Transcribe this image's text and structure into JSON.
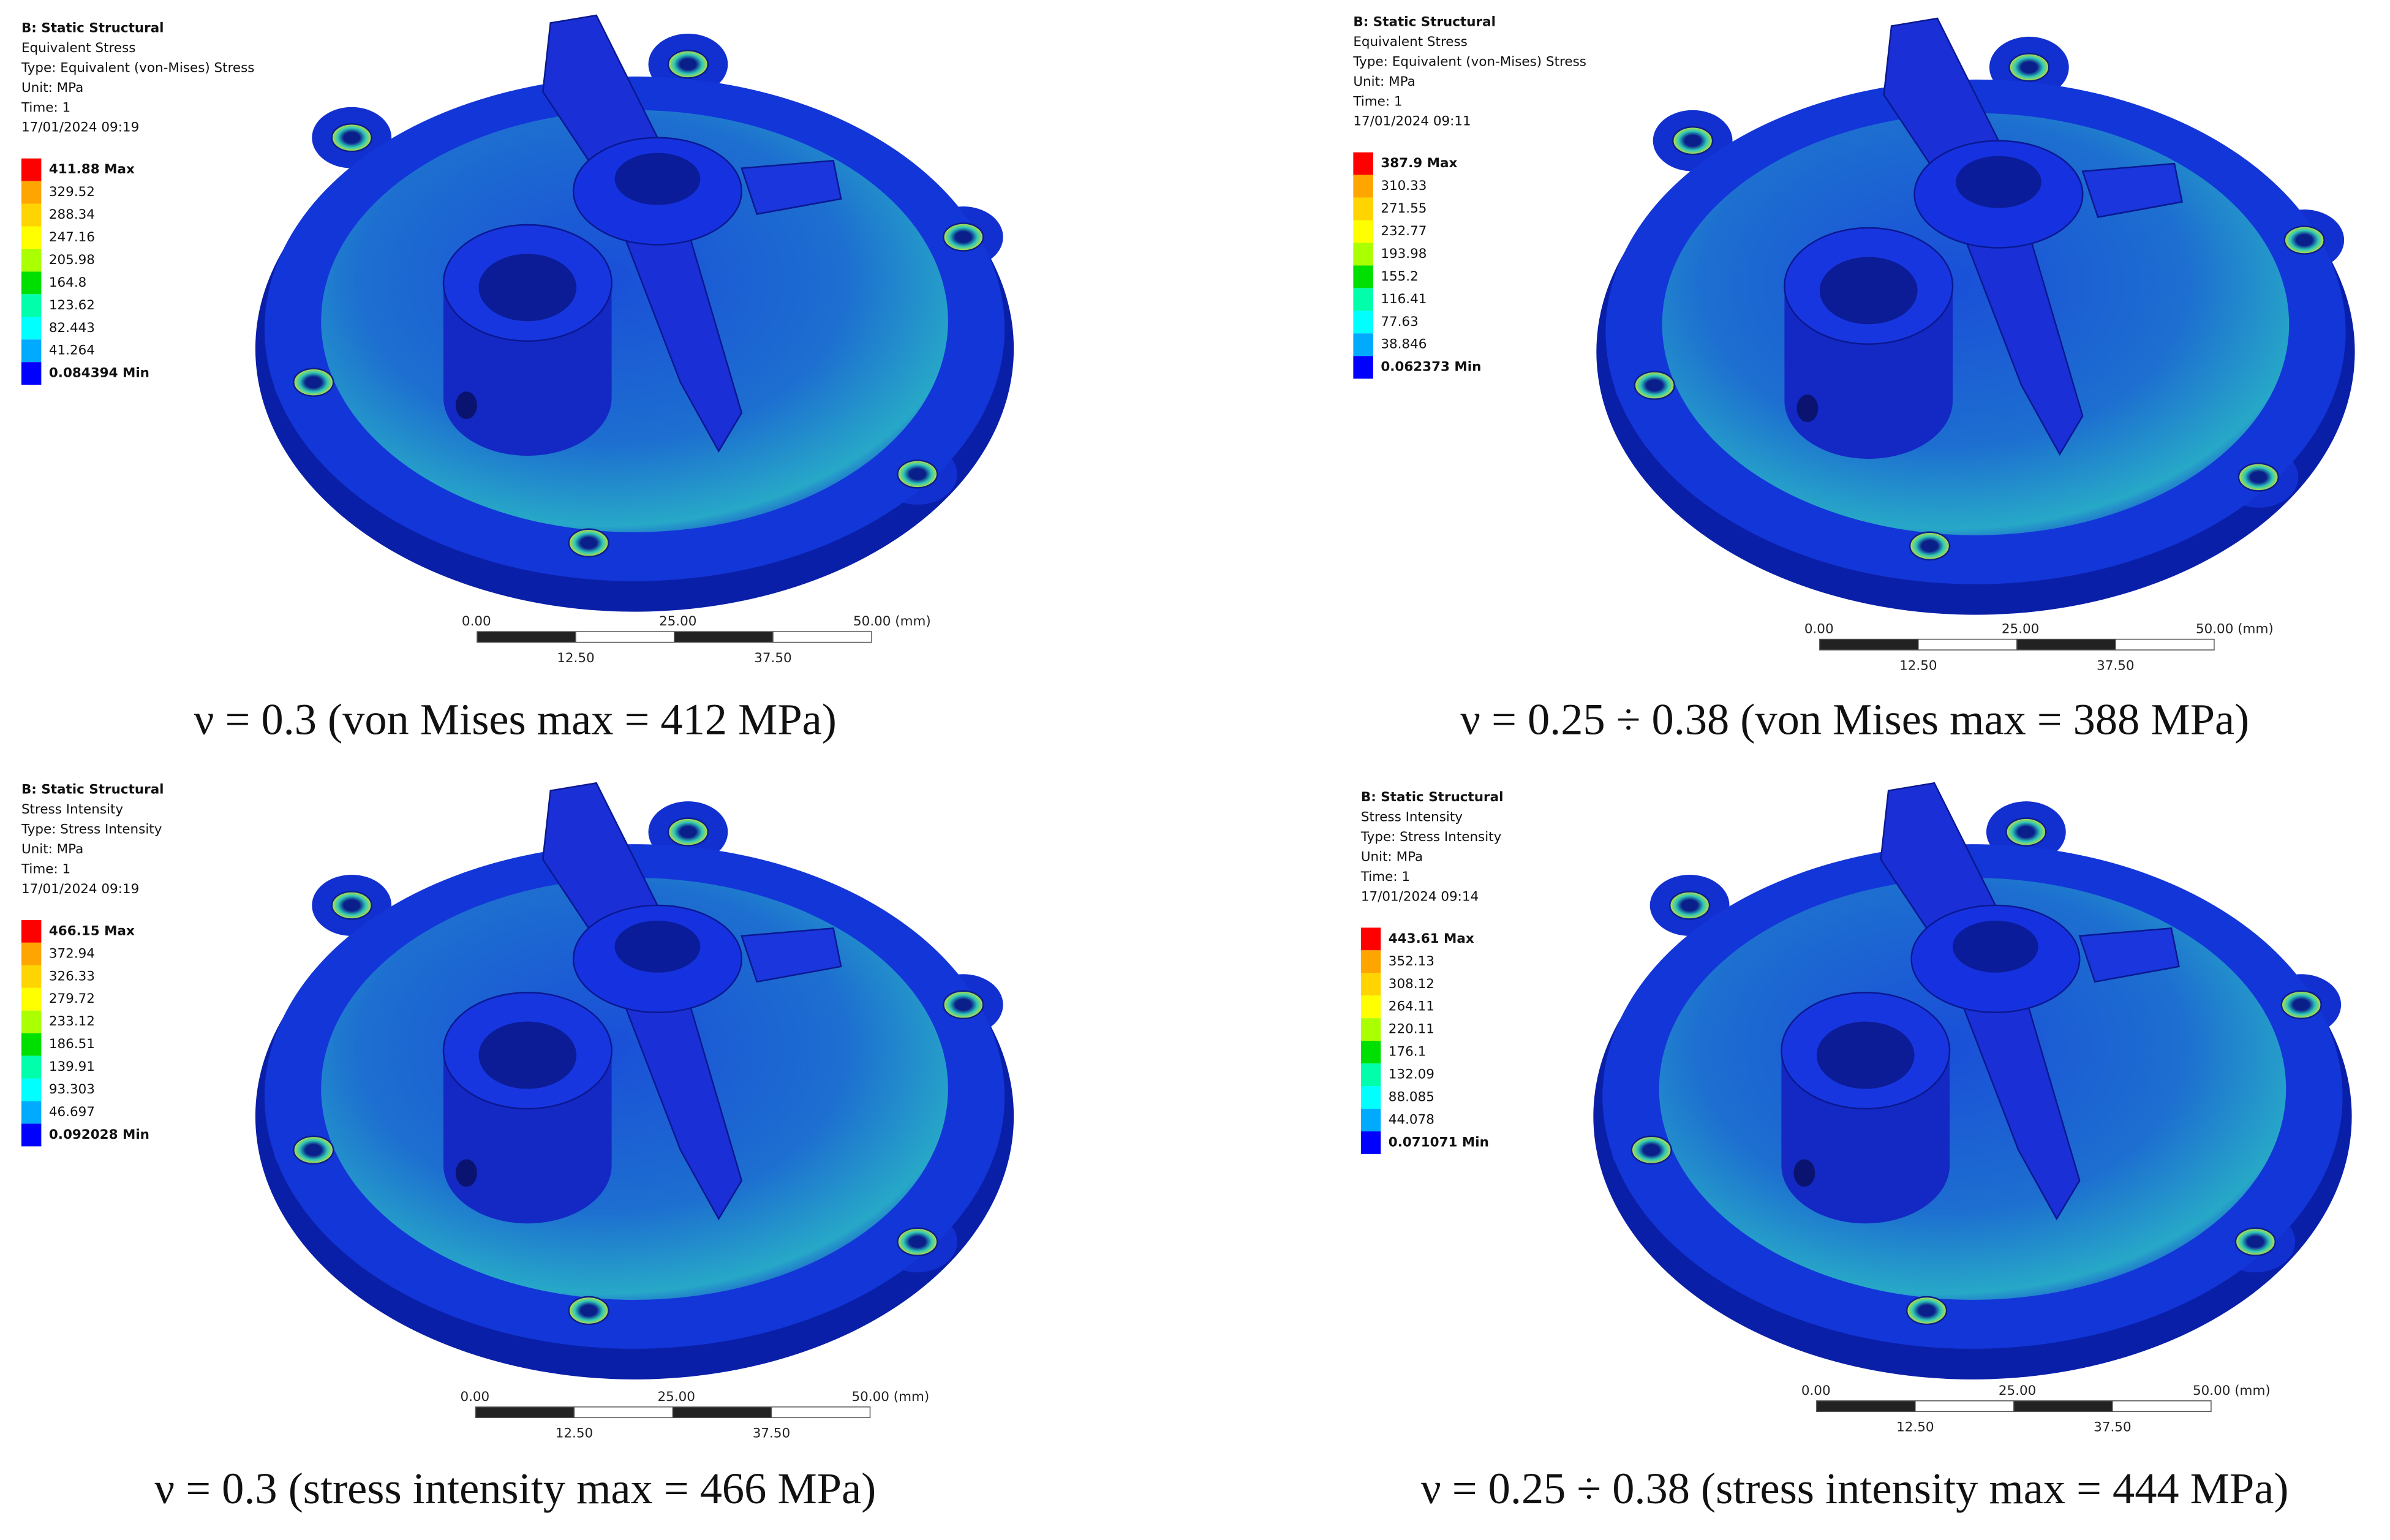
{
  "panels": [
    {
      "header": [
        "B: Static Structural",
        "Equivalent Stress",
        "Type: Equivalent (von-Mises) Stress",
        "Unit: MPa",
        "Time: 1",
        "17/01/2024 09:19"
      ],
      "legend": [
        "411.88 Max",
        "329.52",
        "288.34",
        "247.16",
        "205.98",
        "164.8",
        "123.62",
        "82.443",
        "41.264",
        "0.084394 Min"
      ],
      "scale_top": [
        "0.00",
        "25.00",
        "50.00 (mm)"
      ],
      "scale_bottom": [
        "12.50",
        "37.50"
      ],
      "caption": "ν = 0.3 (von Mises max = 412 MPa)"
    },
    {
      "header": [
        "B: Static Structural",
        "Equivalent Stress",
        "Type: Equivalent (von-Mises) Stress",
        "Unit: MPa",
        "Time: 1",
        "17/01/2024 09:11"
      ],
      "legend": [
        "387.9 Max",
        "310.33",
        "271.55",
        "232.77",
        "193.98",
        "155.2",
        "116.41",
        "77.63",
        "38.846",
        "0.062373 Min"
      ],
      "scale_top": [
        "0.00",
        "25.00",
        "50.00 (mm)"
      ],
      "scale_bottom": [
        "12.50",
        "37.50"
      ],
      "caption": "ν = 0.25 ÷ 0.38 (von Mises max = 388 MPa)"
    },
    {
      "header": [
        "B: Static Structural",
        "Stress Intensity",
        "Type: Stress Intensity",
        "Unit: MPa",
        "Time: 1",
        "17/01/2024 09:19"
      ],
      "legend": [
        "466.15 Max",
        "372.94",
        "326.33",
        "279.72",
        "233.12",
        "186.51",
        "139.91",
        "93.303",
        "46.697",
        "0.092028 Min"
      ],
      "scale_top": [
        "0.00",
        "25.00",
        "50.00 (mm)"
      ],
      "scale_bottom": [
        "12.50",
        "37.50"
      ],
      "caption": "ν = 0.3 (stress intensity max = 466 MPa)"
    },
    {
      "header": [
        "B: Static Structural",
        "Stress Intensity",
        "Type: Stress Intensity",
        "Unit: MPa",
        "Time: 1",
        "17/01/2024 09:14"
      ],
      "legend": [
        "443.61 Max",
        "352.13",
        "308.12",
        "264.11",
        "220.11",
        "176.1",
        "132.09",
        "88.085",
        "44.078",
        "0.071071 Min"
      ],
      "scale_top": [
        "0.00",
        "25.00",
        "50.00 (mm)"
      ],
      "scale_bottom": [
        "12.50",
        "37.50"
      ],
      "caption": "ν = 0.25 ÷ 0.38 (stress intensity max = 444 MPa)"
    }
  ]
}
